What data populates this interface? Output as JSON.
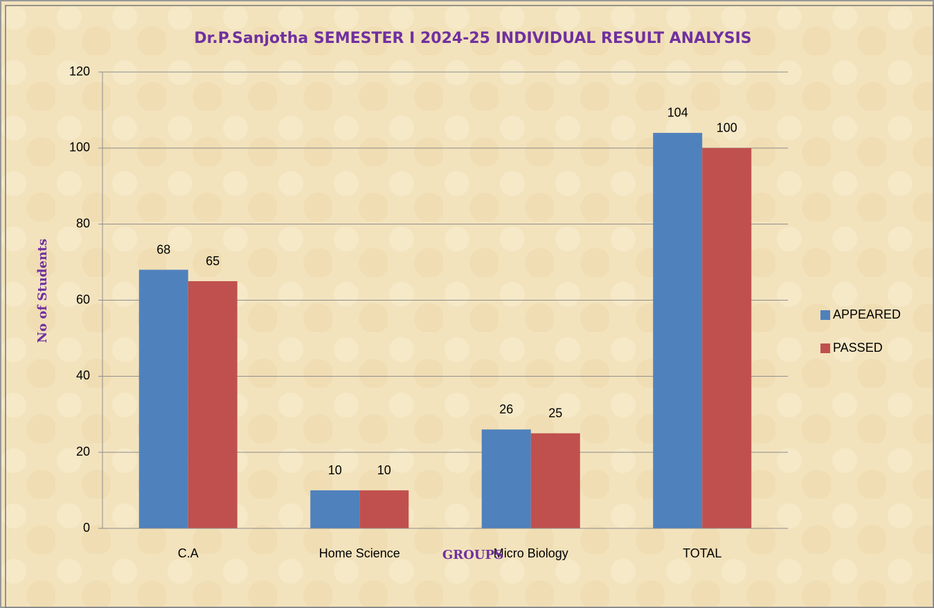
{
  "chart_data": {
    "type": "bar",
    "title": "Dr.P.Sanjotha SEMESTER I 2024-25 INDIVIDUAL RESULT ANALYSIS",
    "x_label": "GROUPS",
    "y_label": "No of Students",
    "categories": [
      "C.A",
      "Home Science",
      "Micro Biology",
      "TOTAL"
    ],
    "series": [
      {
        "name": "APPEARED",
        "color": "#4f81bd",
        "values": [
          68,
          10,
          26,
          104
        ]
      },
      {
        "name": "PASSED",
        "color": "#c0504d",
        "values": [
          65,
          10,
          25,
          100
        ]
      }
    ],
    "ylim": [
      0,
      120
    ],
    "yticks": [
      0,
      20,
      40,
      60,
      80,
      100,
      120
    ],
    "grid": true,
    "legend": "right"
  }
}
